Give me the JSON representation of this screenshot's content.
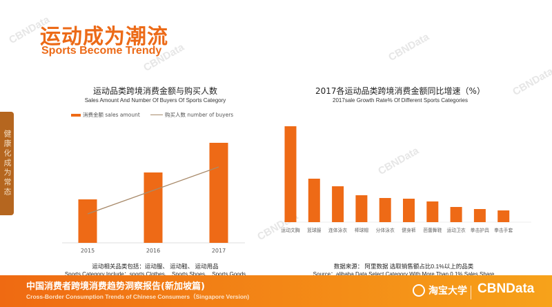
{
  "header": {
    "title_cn": "运动成为潮流",
    "title_en": "Sports Become Trendy"
  },
  "side_tab": "健康化成为常态",
  "watermark": "CBNData",
  "chart_data": [
    {
      "type": "bar+line",
      "title": "运动品类跨境消费金额与购买人数",
      "subtitle": "Sales Amount And Number Of Buyers Of Sports Category",
      "categories": [
        "2015",
        "2016",
        "2017"
      ],
      "series": [
        {
          "name": "消费金额 sales amount",
          "type": "bar",
          "values": [
            63,
            102,
            145
          ]
        },
        {
          "name": "购买人数 number of buyers",
          "type": "line",
          "values": [
            42,
            76,
            110
          ]
        }
      ],
      "bar_color": "#ee6a16",
      "line_color": "#a88a6a",
      "note_cn": "运动相关品类包括：运动服、 运动鞋、 运动用品",
      "note_en": "Sports Category Include：sports Clothes、 Sports Shoes、 Sports Goods"
    },
    {
      "type": "bar",
      "title": "2017各运动品类跨境消费金额同比增速（%）",
      "subtitle": "2017sale Growth Rate% Of Different Sports Categories",
      "categories": [
        "运动文胸",
        "篮球服",
        "连体泳衣",
        "棒球帽",
        "分体泳衣",
        "健身裤",
        "芭蕾舞鞋",
        "运动卫衣",
        "拳击护具",
        "拳击手套"
      ],
      "values": [
        139,
        63,
        52,
        39,
        35,
        34,
        30,
        22,
        19,
        17
      ],
      "bar_color": "#ee6a16",
      "note_cn": "数据来源： 阿里数据      选取销售额占比0.1%以上的品类",
      "note_en": "Source：alibaba Data   Select Category With More Than 0.1% Sales Share"
    }
  ],
  "footer": {
    "title_cn": "中国消费者跨境消费趋势洞察报告(新加坡篇)",
    "title_en": "Cross-Border Consumption Trends of Chinese Consumers（Singapore Version)",
    "logo_taobao": "淘宝大学",
    "logo_cbn": "CBNData"
  }
}
